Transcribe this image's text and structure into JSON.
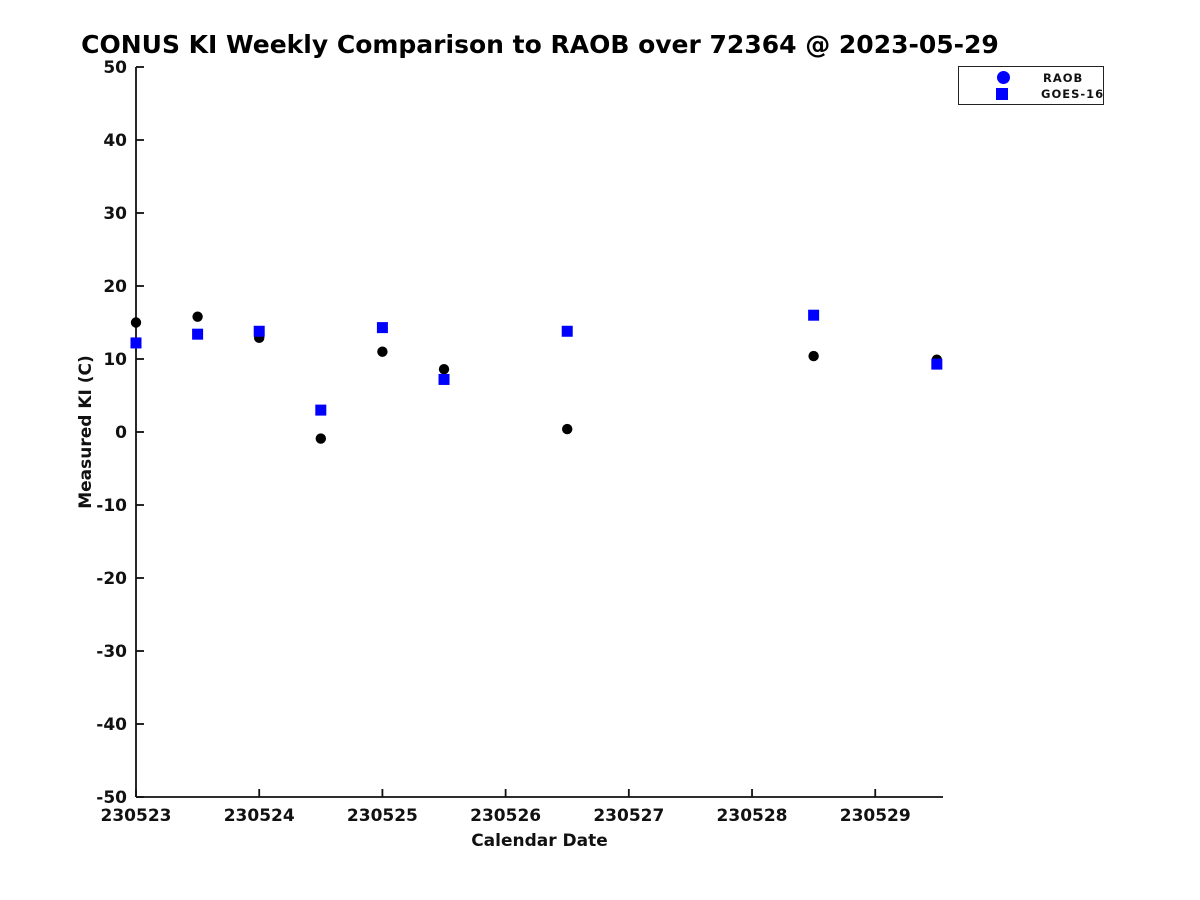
{
  "window": {
    "background": "#ffffff"
  },
  "chart_data": {
    "type": "scatter",
    "title": "CONUS KI Weekly Comparison to RAOB over 72364 @ 2023-05-29",
    "xlabel": "Calendar Date",
    "ylabel": "Measured KI (C)",
    "grid": false,
    "xlim": [
      230523,
      230529.55
    ],
    "ylim": [
      -50,
      50
    ],
    "y_tick_step": 10,
    "x_ticks": {
      "values": [
        230523,
        230524,
        230525,
        230526,
        230527,
        230528,
        230529
      ],
      "labels": [
        "230523",
        "230524",
        "230525",
        "230526",
        "230527",
        "230528",
        "230529"
      ]
    },
    "legend": {
      "position": "top-right",
      "entries": [
        {
          "label": "RAOB",
          "marker": "circle",
          "color": "#0000ff"
        },
        {
          "label": "GOES-16",
          "marker": "square",
          "color": "#0000ff"
        }
      ]
    },
    "series": [
      {
        "name": "RAOB",
        "marker": "circle",
        "color": "#000000",
        "x": [
          230523.0,
          230523.5,
          230524.0,
          230524.5,
          230525.0,
          230525.5,
          230526.5,
          230528.5,
          230529.5
        ],
        "y": [
          15.0,
          15.8,
          12.9,
          -0.9,
          11.0,
          8.6,
          0.4,
          10.4,
          9.9
        ]
      },
      {
        "name": "GOES-16",
        "marker": "square",
        "color": "#0000ff",
        "x": [
          230523.0,
          230523.5,
          230524.0,
          230524.5,
          230525.0,
          230525.5,
          230526.5,
          230528.5,
          230529.5
        ],
        "y": [
          12.2,
          13.4,
          13.8,
          3.0,
          14.3,
          7.2,
          13.8,
          16.0,
          9.3
        ]
      }
    ]
  },
  "colors": {
    "axis": "#111111",
    "tick_text": "#111111",
    "title_text": "#000000"
  }
}
